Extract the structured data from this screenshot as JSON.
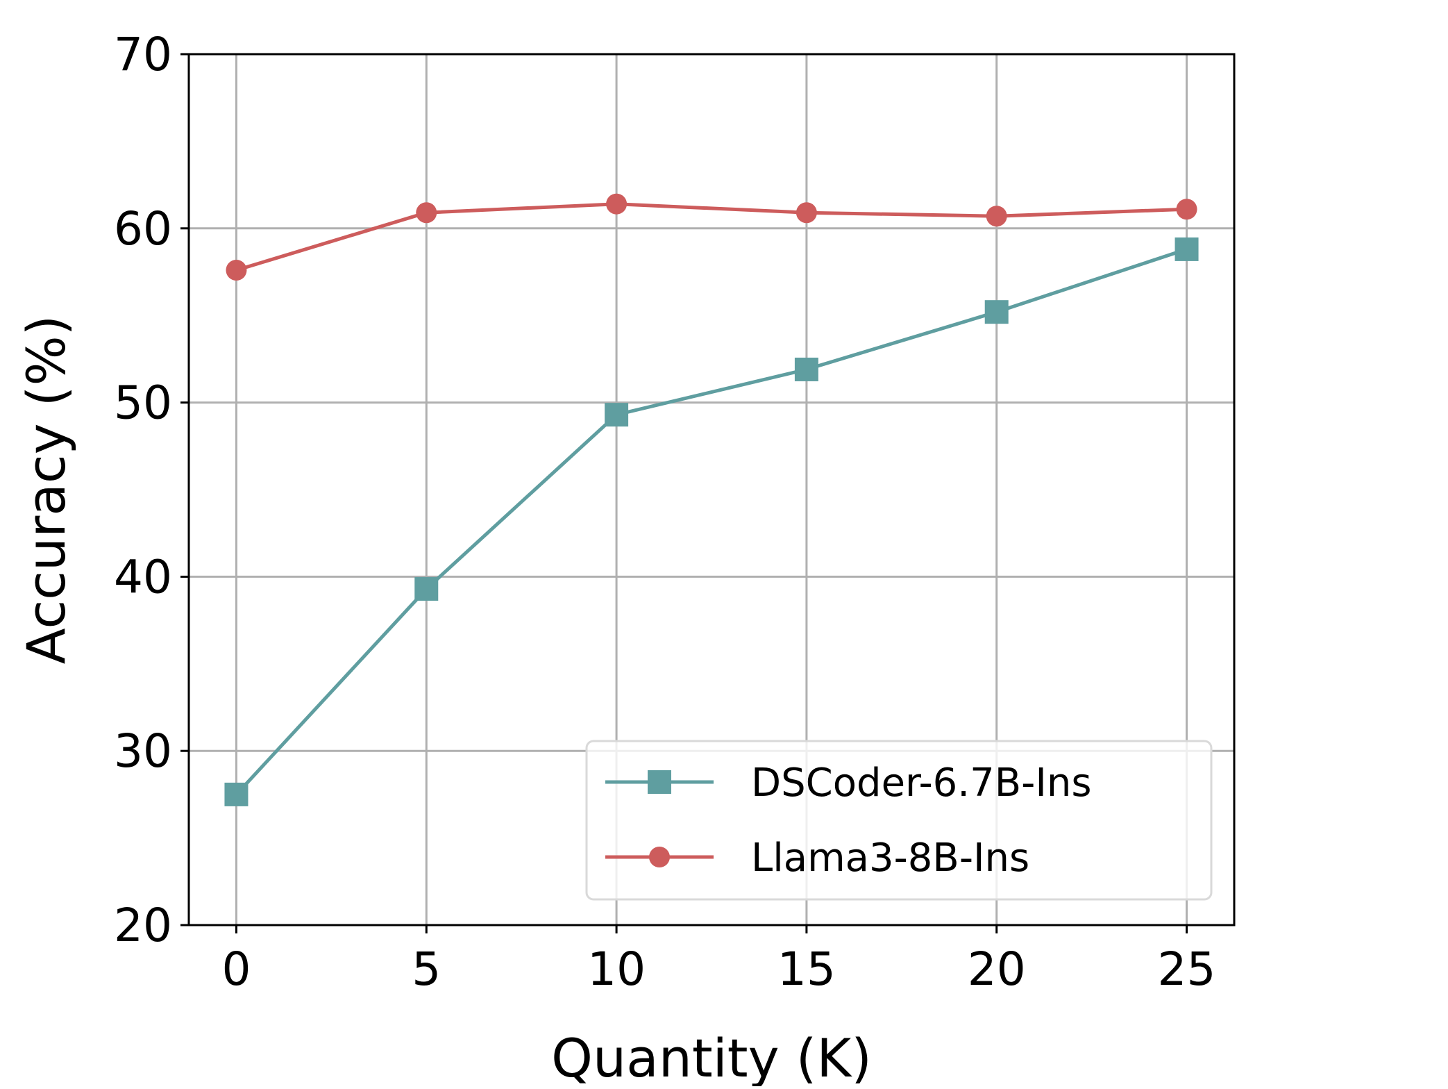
{
  "chart_data": {
    "type": "line",
    "title": "",
    "xlabel": "Quantity (K)",
    "ylabel": "Accuracy (%)",
    "x": [
      0,
      5,
      10,
      15,
      20,
      25
    ],
    "xlim": [
      -1.25,
      26.25
    ],
    "ylim": [
      20,
      70
    ],
    "xticks": [
      "0",
      "5",
      "10",
      "15",
      "20",
      "25"
    ],
    "yticks": [
      "20",
      "30",
      "40",
      "50",
      "60",
      "70"
    ],
    "grid": true,
    "legend_position": "lower-right",
    "series": [
      {
        "name": "DSCoder-6.7B-Ins",
        "marker": "square",
        "color": "#5f9ea0",
        "values": [
          27.5,
          39.3,
          49.3,
          51.9,
          55.2,
          58.8
        ]
      },
      {
        "name": "Llama3-8B-Ins",
        "marker": "circle",
        "color": "#cd5c5c",
        "values": [
          57.6,
          60.9,
          61.4,
          60.9,
          60.7,
          61.1
        ]
      }
    ]
  }
}
